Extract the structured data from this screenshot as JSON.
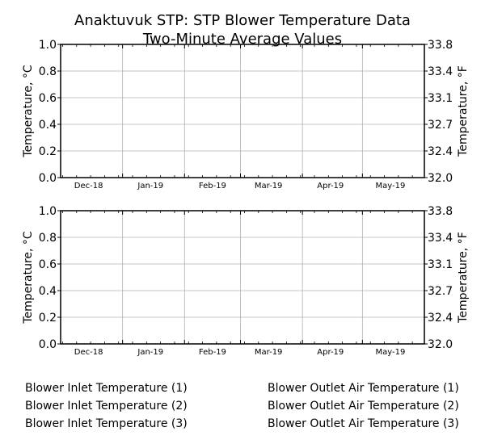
{
  "chart_data": [
    {
      "type": "line",
      "title": "Anaktuvuk STP: STP Blower Temperature Data",
      "subtitle": "Two-Minute Average Values",
      "ylabel": "Temperature, °C",
      "ylabel_right": "Temperature, °F",
      "ylim": [
        0,
        1
      ],
      "yticks": [
        "0.0",
        "0.2",
        "0.4",
        "0.6",
        "0.8",
        "1.0"
      ],
      "yticks_right": [
        "32.0",
        "32.4",
        "32.7",
        "33.1",
        "33.4",
        "33.8"
      ],
      "xlim": [
        "2018-12-01",
        "2019-06-01"
      ],
      "xticks": [
        "Dec-18",
        "Jan-19",
        "Feb-19",
        "Mar-19",
        "Apr-19",
        "May-19"
      ],
      "grid": true,
      "series": [
        {
          "name": "Blower Inlet Temperature (1)",
          "values": []
        },
        {
          "name": "Blower Inlet Temperature (2)",
          "values": []
        },
        {
          "name": "Blower Inlet Temperature (3)",
          "values": []
        }
      ]
    },
    {
      "type": "line",
      "ylabel": "Temperature, °C",
      "ylabel_right": "Temperature, °F",
      "ylim": [
        0,
        1
      ],
      "yticks": [
        "0.0",
        "0.2",
        "0.4",
        "0.6",
        "0.8",
        "1.0"
      ],
      "yticks_right": [
        "32.0",
        "32.4",
        "32.7",
        "33.1",
        "33.4",
        "33.8"
      ],
      "xlim": [
        "2018-12-01",
        "2019-06-01"
      ],
      "xticks": [
        "Dec-18",
        "Jan-19",
        "Feb-19",
        "Mar-19",
        "Apr-19",
        "May-19"
      ],
      "grid": true,
      "series": [
        {
          "name": "Blower Outlet Air Temperature (1)",
          "values": []
        },
        {
          "name": "Blower Outlet Air Temperature (2)",
          "values": []
        },
        {
          "name": "Blower Outlet Air Temperature (3)",
          "values": []
        }
      ]
    }
  ]
}
